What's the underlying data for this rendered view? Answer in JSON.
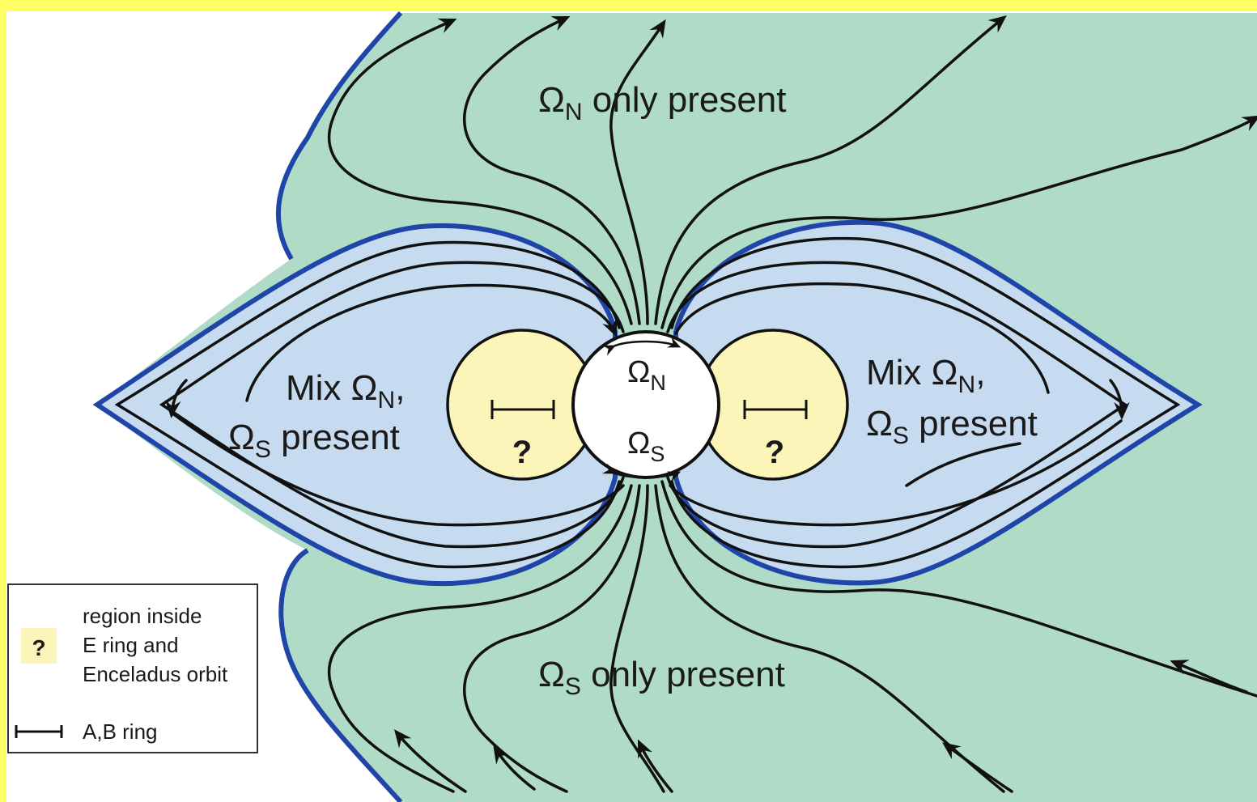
{
  "labels": {
    "north_only": {
      "omega": "Ω",
      "sub": "N",
      "text": " only present"
    },
    "south_only": {
      "omega": "Ω",
      "sub": "S",
      "text": " only present"
    },
    "mix_left": {
      "line1": "Mix Ω",
      "line1_sub": "N",
      "line1_tail": ",",
      "line2_omega": "Ω",
      "line2_sub": "S",
      "line2_text": " present"
    },
    "mix_right": {
      "line1": "Mix Ω",
      "line1_sub": "N",
      "line1_tail": ",",
      "line2_omega": "Ω",
      "line2_sub": "S",
      "line2_text": " present"
    },
    "planet_north": {
      "omega": "Ω",
      "sub": "N"
    },
    "planet_south": {
      "omega": "Ω",
      "sub": "S"
    },
    "unknown_mark": "?"
  },
  "legend": {
    "swatch_symbol": "?",
    "region_text": [
      "region inside",
      "E ring and",
      "Enceladus orbit"
    ],
    "ring_text": "A,B ring"
  },
  "colors": {
    "border": "#ffff66",
    "outer_region": "#afdbc7",
    "inner_region": "#c6dbef",
    "boundary": "#1f45a8",
    "unknown_region": "#fbf5b9",
    "planet": "#ffffff",
    "field_lines": "#111111"
  }
}
